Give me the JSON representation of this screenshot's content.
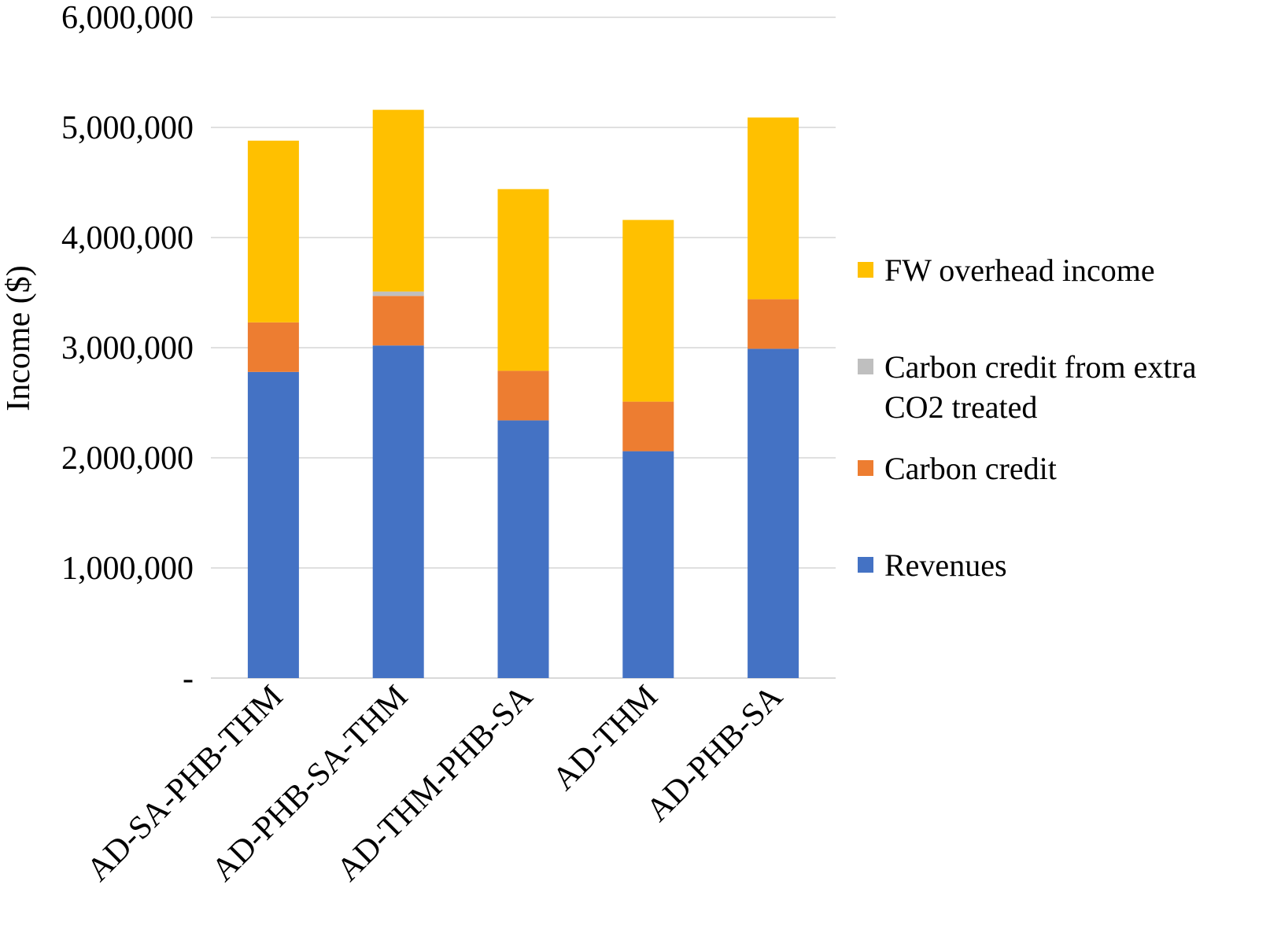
{
  "chart_data": {
    "type": "bar",
    "stacked": true,
    "categories": [
      "AD-SA-PHB-THM",
      "AD-PHB-SA-THM",
      "AD-THM-PHB-SA",
      "AD-THM",
      "AD-PHB-SA"
    ],
    "ylabel": "Income ($)",
    "xlabel": "",
    "title": "",
    "ylim": [
      0,
      6000000
    ],
    "yticks": [
      {
        "value": 0,
        "label": "-"
      },
      {
        "value": 1000000,
        "label": "1,000,000"
      },
      {
        "value": 2000000,
        "label": "2,000,000"
      },
      {
        "value": 3000000,
        "label": "3,000,000"
      },
      {
        "value": 4000000,
        "label": "4,000,000"
      },
      {
        "value": 5000000,
        "label": "5,000,000"
      },
      {
        "value": 6000000,
        "label": "6,000,000"
      }
    ],
    "grid": true,
    "legend_position": "right",
    "series": [
      {
        "name": "Revenues",
        "color": "#4472C4",
        "values": [
          2780000,
          3020000,
          2340000,
          2060000,
          2990000
        ]
      },
      {
        "name": "Carbon credit",
        "color": "#ED7D31",
        "values": [
          450000,
          450000,
          450000,
          450000,
          450000
        ]
      },
      {
        "name": "Carbon credit from extra CO2 treated",
        "color": "#BFBFBF",
        "values": [
          0,
          40000,
          0,
          0,
          0
        ]
      },
      {
        "name": "FW overhead income",
        "color": "#FFC000",
        "values": [
          1650000,
          1650000,
          1650000,
          1650000,
          1650000
        ]
      }
    ],
    "legend_order": [
      3,
      2,
      1,
      0
    ]
  }
}
